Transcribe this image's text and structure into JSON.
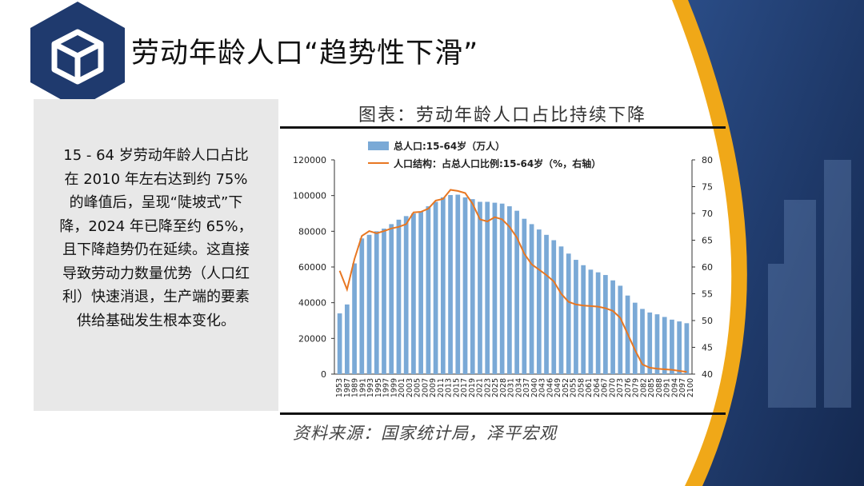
{
  "page": {
    "title": "劳动年龄人口“趋势性下滑”",
    "description": "15 - 64 岁劳动年龄人口占比在 2010 年左右达到约 75% 的峰值后，呈现“陡坡式”下降，2024 年已降至约 65%，且下降趋势仍在延续。这直接导致劳动力数量优势（人口红利）快速消退，生产端的要素供给基础发生根本变化。",
    "chart_title": "图表：劳动年龄人口占比持续下降",
    "source": "资料来源：国家统计局，泽平宏观"
  },
  "colors": {
    "navy": "#1f3a6e",
    "gold": "#f0a818",
    "bar": "#7aa9d6",
    "line": "#e87722",
    "panel": "#e8e8e8"
  },
  "icons": {
    "logo": "cube-icon"
  },
  "chart_data": {
    "type": "bar",
    "xtick_labels": [
      "1953",
      "1987",
      "1989",
      "1991",
      "1993",
      "1995",
      "1997",
      "1999",
      "2001",
      "2003",
      "2005",
      "2007",
      "2009",
      "2011",
      "2013",
      "2015",
      "2017",
      "2019",
      "2021",
      "2023",
      "2025",
      "2028",
      "2031",
      "2034",
      "2037",
      "2040",
      "2043",
      "2046",
      "2049",
      "2052",
      "2055",
      "2058",
      "2061",
      "2064",
      "2067",
      "2070",
      "2073",
      "2076",
      "2079",
      "2082",
      "2085",
      "2088",
      "2091",
      "2094",
      "2097",
      "2100"
    ],
    "ylim_left": [
      0,
      120000
    ],
    "yticks_left": [
      0,
      20000,
      40000,
      60000,
      80000,
      100000,
      120000
    ],
    "ylim_right": [
      40,
      80
    ],
    "yticks_right": [
      40,
      45,
      50,
      55,
      60,
      65,
      70,
      75,
      80
    ],
    "series": [
      {
        "name": "总人口:15-64岁（万人）",
        "type": "bar",
        "axis": "left",
        "x": [
          1953,
          1964,
          1982,
          1987,
          1989,
          1991,
          1993,
          1995,
          1997,
          1999,
          2001,
          2003,
          2005,
          2007,
          2009,
          2011,
          2013,
          2015,
          2017,
          2019,
          2021,
          2023,
          2025,
          2028,
          2031,
          2034,
          2037,
          2040,
          2043,
          2046,
          2049,
          2052,
          2055,
          2058,
          2061,
          2064,
          2067,
          2070,
          2073,
          2076,
          2079,
          2082,
          2085,
          2088,
          2091,
          2094,
          2097,
          2100
        ],
        "values": [
          34000,
          39000,
          62000,
          76000,
          78000,
          80000,
          81500,
          84000,
          86500,
          88500,
          90000,
          91000,
          94000,
          96500,
          99000,
          100300,
          100500,
          99000,
          98000,
          96500,
          96500,
          96000,
          95500,
          94000,
          91500,
          87000,
          84000,
          81000,
          78000,
          75000,
          71500,
          67500,
          64000,
          61000,
          58500,
          57000,
          55500,
          52500,
          49500,
          44000,
          40000,
          36500,
          34500,
          33500,
          32000,
          30500,
          29500,
          28500
        ]
      },
      {
        "name": "人口结构：占总人口比例:15-64岁（%，右轴）",
        "type": "line",
        "axis": "right",
        "x": [
          1953,
          1964,
          1982,
          1987,
          1989,
          1991,
          1993,
          1995,
          1997,
          1999,
          2001,
          2003,
          2005,
          2007,
          2009,
          2011,
          2013,
          2015,
          2017,
          2019,
          2021,
          2023,
          2025,
          2028,
          2031,
          2034,
          2037,
          2040,
          2043,
          2046,
          2049,
          2052,
          2055,
          2058,
          2061,
          2064,
          2067,
          2070,
          2073,
          2076,
          2079,
          2082,
          2085,
          2088,
          2091,
          2094,
          2097,
          2100
        ],
        "values": [
          59.3,
          55.8,
          61.5,
          65.8,
          66.7,
          66.3,
          66.7,
          67.2,
          67.5,
          68.0,
          70.2,
          70.3,
          70.9,
          72.4,
          72.7,
          74.4,
          74.2,
          73.8,
          71.8,
          68.9,
          68.5,
          69.3,
          68.9,
          67.5,
          65.5,
          62.5,
          60.5,
          59.5,
          58.5,
          57.3,
          55.0,
          53.5,
          53.0,
          52.8,
          52.7,
          52.6,
          52.3,
          51.8,
          50.5,
          47.5,
          44.5,
          41.8,
          41.2,
          41.0,
          40.9,
          40.8,
          40.6,
          40.4
        ]
      }
    ]
  }
}
